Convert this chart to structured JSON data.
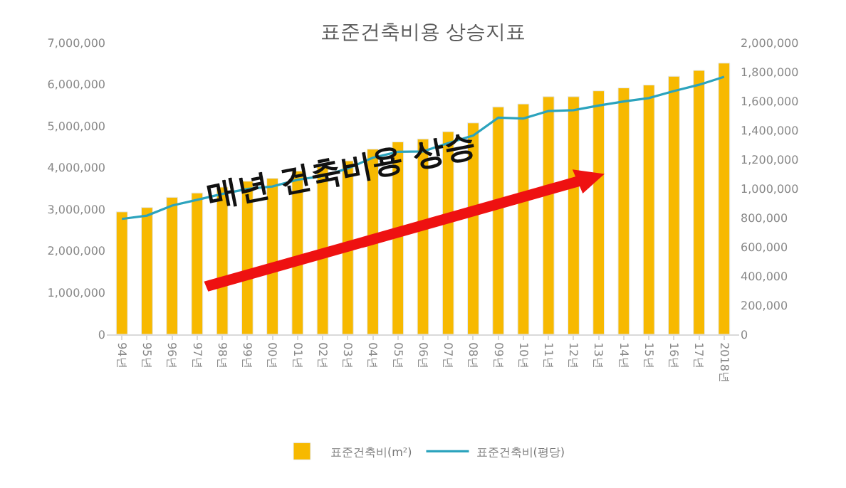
{
  "chart_data": {
    "type": "bar",
    "title": "표준건축비용 상승지표",
    "categories": [
      "94년",
      "95년",
      "96년",
      "97년",
      "98년",
      "99년",
      "00년",
      "01년",
      "02년",
      "03년",
      "04년",
      "05년",
      "06년",
      "07년",
      "08년",
      "09년",
      "10년",
      "11년",
      "12년",
      "13년",
      "14년",
      "15년",
      "16년",
      "17년",
      "2018년"
    ],
    "series": [
      {
        "name": "표준건축비(m²)",
        "axis": "y2",
        "color": "#f7b900",
        "values": [
          840000,
          870000,
          940000,
          970000,
          1010000,
          1050000,
          1070000,
          1120000,
          1150000,
          1190000,
          1270000,
          1320000,
          1340000,
          1390000,
          1450000,
          1560000,
          1580000,
          1630000,
          1630000,
          1670000,
          1690000,
          1710000,
          1770000,
          1810000,
          1860000
        ]
      },
      {
        "name": "표준건축비(평당)",
        "type": "line",
        "color": "#2ba3bd",
        "values": [
          2770000,
          2850000,
          3090000,
          3230000,
          3370000,
          3490000,
          3550000,
          3710000,
          3800000,
          3980000,
          4240000,
          4380000,
          4390000,
          4590000,
          4770000,
          5200000,
          5180000,
          5360000,
          5380000,
          5490000,
          5590000,
          5670000,
          5840000,
          5990000,
          6180000
        ]
      }
    ],
    "ylim": [
      0,
      7000000
    ],
    "yticks": [
      {
        "value": 0,
        "label": "0"
      },
      {
        "value": 1000000,
        "label": "1,000,000"
      },
      {
        "value": 2000000,
        "label": "2,000,000"
      },
      {
        "value": 3000000,
        "label": "3,000,000"
      },
      {
        "value": 4000000,
        "label": "4,000,000"
      },
      {
        "value": 5000000,
        "label": "5,000,000"
      },
      {
        "value": 6000000,
        "label": "6,000,000"
      },
      {
        "value": 7000000,
        "label": "7,000,000"
      }
    ],
    "y2lim": [
      0,
      2000000
    ],
    "y2ticks": [
      {
        "value": 0,
        "label": "0"
      },
      {
        "value": 200000,
        "label": "200,000"
      },
      {
        "value": 400000,
        "label": "400,000"
      },
      {
        "value": 600000,
        "label": "600,000"
      },
      {
        "value": 800000,
        "label": "800,000"
      },
      {
        "value": 1000000,
        "label": "1,000,000"
      },
      {
        "value": 1200000,
        "label": "1,200,000"
      },
      {
        "value": 1400000,
        "label": "1,400,000"
      },
      {
        "value": 1600000,
        "label": "1,600,000"
      },
      {
        "value": 1800000,
        "label": "1,800,000"
      },
      {
        "value": 2000000,
        "label": "2,000,000"
      }
    ],
    "annotations": [
      "매년 건축비용 상승"
    ],
    "grid": false,
    "legend": "bottom",
    "marker": "none",
    "line_style": "solid"
  }
}
